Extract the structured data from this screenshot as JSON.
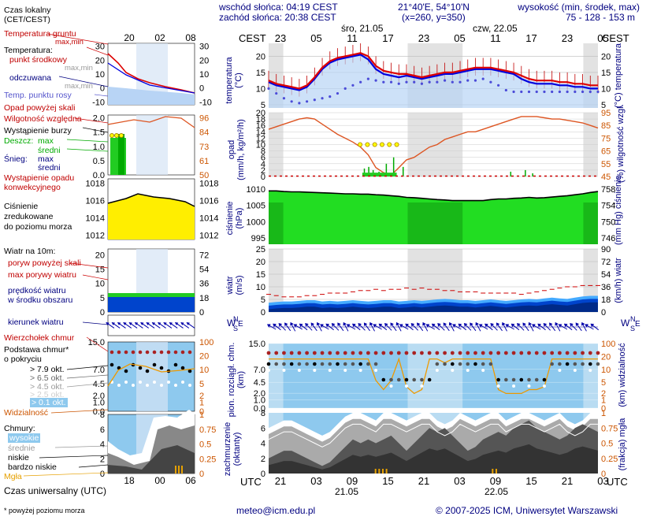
{
  "header": {
    "sunrise": "wschód słońca: 04:19 CEST",
    "sunset": "zachód słońca: 20:38 CEST",
    "coords": "21°40'E, 54°10'N",
    "grid": "(x=260, y=350)",
    "heights_title": "wysokość (min, środek, max)",
    "heights_values": "75 - 128 - 153 m",
    "day1": "śro, 21.05",
    "day2": "czw, 22.05",
    "cest": "CEST",
    "utc": "UTC"
  },
  "legend": {
    "local_time": "Czas lokalny\n(CET/CEST)",
    "ground_temp": "Temperatura gruntu",
    "max_min": "max,min",
    "temperature": "Temperatura:",
    "mid_point": "punkt środkowy",
    "max_min2": "max,min",
    "felt": "odczuwana",
    "max_min3": "max,min",
    "dew_point": "Temp. punktu rosy",
    "precip_above": "Opad powyżej skali",
    "humidity": "Wilgotność względna",
    "storm": "Wystąpienie burzy",
    "rain": "Deszcz:",
    "rain_max": "max",
    "rain_mid": "średni",
    "snow": "Śnieg:",
    "snow_max": "max",
    "snow_mid": "średni",
    "convective": "Wystąpienie opadu\nkonwekcyjnego",
    "pressure": "Ciśnienie\nzredukowane\ndo poziomu morza",
    "wind": "Wiatr na ",
    "wind_height": "10",
    "wind_unit": "m:",
    "gust_above": "poryw powyżej skali",
    "gust_max": "max porywy wiatru",
    "wind_speed": "prędkość wiatru\nw środku obszaru",
    "wind_dir": "kierunek wiatru",
    "cloud_top": "Wierzchołek chmur",
    "cloud_base": "Podstawa chmur*\no pokryciu",
    "okt79": "> 7.9 okt.",
    "okt65": "> 6.5 okt.",
    "okt45": "> 4.5 okt.",
    "okt25": "> 2.5 okt.",
    "okt01": "> 0.1 okt.",
    "visibility": "Widzialność",
    "clouds": "Chmury:",
    "high": "wysokie",
    "middle": "średnie",
    "low": "niskie",
    "very_low": "bardzo niskie",
    "fog": "Mgła",
    "universal_time": "Czas uniwersalny (UTC)",
    "footnote": "* powyżej poziomu morza"
  },
  "axes": {
    "temp_label": "temperatura\n(°C)",
    "temp_unit_right": "(°C)",
    "temp_label_right": "temperatura",
    "precip_label": "opad\n(mm/h, kg/m²/h)",
    "humidity_label": "wilgotność wzgl.",
    "humidity_unit": "(%)",
    "pressure_label": "ciśnienie\n(hPa)",
    "pressure_right": "(mm Hg)",
    "pressure_right2": "ciśnienie",
    "wind_label": "wiatr\n(m/s)",
    "wind_right": "(km/h)",
    "wind_right2": "wiatr",
    "dir_label": "W E S N",
    "cloud_label": "pion. rozciągł. chm.\n(km)",
    "vis_label": "widzialność",
    "vis_unit": "(km)",
    "coverage_label": "zachmurzenie\n(oktanty)",
    "fog_label": "mgła",
    "fog_unit": "(frakcja)"
  },
  "chart_data": [
    {
      "type": "line",
      "name": "temperature",
      "title": "",
      "ylabel": "temperatura (°C)",
      "ylim": [
        4,
        24
      ],
      "ylim_right": [
        4,
        24
      ],
      "x_hours_utc": [
        0,
        3,
        6,
        9,
        12,
        15,
        18,
        21,
        24,
        27,
        30,
        33,
        36,
        39,
        42,
        45
      ],
      "ticks_left": [
        5,
        10,
        15,
        20
      ],
      "mid_temp": [
        12.5,
        11.5,
        11,
        10.5,
        10,
        11,
        13.5,
        16.5,
        18.5,
        19.5,
        20,
        20.5,
        21,
        20,
        17,
        15.5,
        15,
        14.5,
        14.5,
        14,
        13.5,
        14,
        14.5,
        15,
        15,
        15.5,
        16,
        16.5,
        16.5,
        16.5,
        16,
        15.5,
        15,
        14,
        13,
        12.5,
        12.5,
        12.5,
        12,
        12,
        11.5,
        11.5,
        11,
        11
      ],
      "felt_temp": [
        12,
        11,
        10.5,
        10,
        9.5,
        10.5,
        13,
        16,
        18,
        19,
        19.5,
        20,
        20.5,
        19,
        16,
        14.5,
        14,
        13.5,
        14,
        13.5,
        13,
        13.5,
        14,
        14.5,
        14.5,
        15,
        15.5,
        16,
        16,
        16,
        15.5,
        15,
        14.5,
        13,
        12,
        11.5,
        11.5,
        11.5,
        11,
        11,
        10.5,
        10.5,
        10,
        10
      ],
      "dew_point": [
        10,
        8.5,
        7,
        6,
        5.5,
        6,
        6.5,
        7,
        7.5,
        8.5,
        10,
        11,
        12,
        13,
        12.5,
        12,
        12,
        11.5,
        12,
        12,
        11.5,
        12,
        12,
        12.5,
        12,
        12,
        12.5,
        12.5,
        13,
        12,
        11,
        9.5,
        9,
        9,
        9,
        9,
        9,
        9,
        9,
        9,
        9,
        9,
        9,
        9
      ]
    },
    {
      "type": "line",
      "name": "precipitation",
      "ylabel": "opad (mm/h, kg/m²/h)",
      "ylim": [
        0,
        20
      ],
      "ticks_left": [
        0,
        2,
        4,
        6,
        8,
        10,
        12,
        14,
        16,
        18,
        20
      ],
      "ylabel_right": "wilgotność wzgl. (%)",
      "ylim_right": [
        45,
        95
      ],
      "ticks_right": [
        45,
        55,
        65,
        75,
        85,
        95
      ],
      "humidity": [
        82,
        84,
        86,
        88,
        90,
        91,
        90,
        86,
        82,
        78,
        75,
        72,
        68,
        62,
        52,
        48,
        46,
        52,
        58,
        60,
        64,
        68,
        70,
        74,
        76,
        78,
        80,
        80,
        82,
        84,
        86,
        88,
        90,
        92,
        92,
        92,
        91,
        90,
        90,
        89,
        88,
        87,
        85,
        83
      ],
      "storm_hours": [
        12.5,
        13.5,
        14.5,
        15.5,
        16.5,
        17.5
      ]
    },
    {
      "type": "area",
      "name": "pressure",
      "ylabel": "ciśnienie (hPa)",
      "ylim": [
        993,
        1012
      ],
      "ticks_left": [
        995,
        1000,
        1005,
        1010
      ],
      "ylabel_right": "(mm Hg)",
      "ticks_right": [
        746,
        750,
        754,
        758
      ],
      "values": [
        1009.5,
        1009.5,
        1009.3,
        1009.2,
        1009.2,
        1009.1,
        1009,
        1008.9,
        1008.8,
        1008.7,
        1008.6,
        1008.6,
        1008.5,
        1008.5,
        1008.3,
        1008.2,
        1008,
        1007.8,
        1007.5,
        1007.4,
        1007.2,
        1007,
        1006.8,
        1006.7,
        1006.5,
        1006.5,
        1006.5,
        1006.5,
        1006.5,
        1006.8,
        1007,
        1007,
        1007.2,
        1007.3,
        1007.5,
        1007.3,
        1007.4,
        1007.6,
        1007.8,
        1008,
        1008.3,
        1008.6,
        1009,
        1009.3
      ]
    },
    {
      "type": "area",
      "name": "wind",
      "ylabel": "wiatr (m/s)",
      "ylim": [
        0,
        25
      ],
      "ticks_left": [
        0,
        5,
        10,
        15,
        20,
        25
      ],
      "ylabel_right": "(km/h)",
      "ticks_right": [
        0,
        18,
        36,
        54,
        72,
        90
      ],
      "speed": [
        2.5,
        2.8,
        3,
        3,
        3.2,
        3.5,
        3.5,
        3,
        3.2,
        3,
        3.2,
        3.5,
        3.2,
        3,
        3.2,
        3.5,
        3.5,
        3,
        3.2,
        3.5,
        3.2,
        3.5,
        3.8,
        4,
        3.8,
        3.5,
        3.5,
        3.2,
        3.5,
        3.8,
        3.5,
        3.2,
        3.5,
        3.8,
        4,
        3.8,
        4.2,
        4.5,
        4.2,
        4,
        4.5,
        5,
        5.2,
        5.2
      ],
      "gusts": [
        7,
        6.5,
        6,
        6,
        6,
        6.5,
        6.5,
        7,
        7.5,
        7.5,
        7.5,
        8,
        8.5,
        8.5,
        9,
        8.5,
        9,
        9,
        9.5,
        9,
        9.5,
        9,
        9,
        8.5,
        8.5,
        8,
        8,
        8,
        7.5,
        7.5,
        7.5,
        7.5,
        7.5,
        7,
        7.5,
        8,
        8.5,
        9,
        9.5,
        10,
        10,
        10.5,
        10.5,
        10.5
      ]
    },
    {
      "type": "scatter",
      "name": "cloud-base",
      "ylabel": "pion. rozciągł. chm. (km)",
      "ylim": [
        0,
        15
      ],
      "ticks_left": [
        0.0,
        1.0,
        2.0,
        4.5,
        7.0,
        15.0
      ],
      "ylabel_right": "widzialność (km)",
      "ticks_right": [
        0,
        1,
        2,
        5,
        10,
        20,
        100
      ],
      "cloud_top": 11.5,
      "visibility": [
        40,
        40,
        40,
        40,
        40,
        40,
        40,
        40,
        40,
        40,
        40,
        40,
        40,
        40,
        8,
        4,
        8,
        40,
        5,
        3,
        4,
        40,
        40,
        30,
        40,
        40,
        40,
        40,
        40,
        40,
        4,
        3,
        3,
        3,
        4,
        4,
        5,
        40,
        40,
        40,
        40,
        40,
        40,
        40
      ]
    },
    {
      "type": "area",
      "name": "cloud-cover",
      "ylabel": "zachmurzenie (oktanty)",
      "ylim": [
        0,
        8
      ],
      "ticks_left": [
        0,
        2,
        4,
        6,
        8
      ],
      "ylabel_right": "mgła (frakcja)",
      "ylim_right": [
        0,
        1
      ],
      "ticks_right": [
        0,
        0.25,
        0.5,
        0.75,
        1
      ],
      "low": [
        2,
        2.5,
        3,
        3,
        2.5,
        2,
        1.5,
        1,
        1.5,
        2.5,
        3.5,
        4.5,
        4,
        4.5,
        4,
        4.5,
        5,
        4,
        3,
        4,
        5,
        6,
        5.5,
        6,
        5,
        4,
        3,
        3.5,
        4.5,
        5,
        5.5,
        5,
        6,
        6.5,
        7,
        6,
        5.5,
        5,
        4.5,
        5,
        6,
        6.5,
        6,
        5.5
      ],
      "high": [
        6,
        6.5,
        7,
        7,
        6.5,
        6,
        5.5,
        5,
        5.5,
        6.5,
        7.5,
        8,
        8,
        7.5,
        7,
        8,
        8,
        7.5,
        7,
        7.5,
        8,
        8,
        7,
        6.5,
        7,
        8,
        7.5,
        7,
        7.5,
        8,
        8,
        7,
        7.5,
        8,
        8,
        7.5,
        7,
        7.5,
        8,
        7,
        6.5,
        7,
        8,
        8
      ]
    }
  ],
  "left_charts": {
    "time_labels_local": [
      "20",
      "02",
      "08"
    ],
    "time_labels_utc": [
      "18",
      "00",
      "06"
    ],
    "temp_ticks": [
      -10,
      0,
      10,
      20,
      30
    ],
    "precip_ticks_left": [
      0,
      0.5,
      1.0,
      1.5,
      2.0
    ],
    "precip_ticks_right": [
      50,
      61,
      73,
      84,
      96
    ],
    "pressure_ticks": [
      1012,
      1014,
      1016,
      1018
    ],
    "wind_ticks_left": [
      0,
      5,
      10,
      15,
      20
    ],
    "wind_ticks_right": [
      0,
      18,
      36,
      54,
      72
    ],
    "cloud_ticks_left": [
      0.0,
      1.0,
      2.0,
      4.5,
      7.0,
      15.0
    ],
    "cloud_ticks_right": [
      0,
      1,
      2,
      5,
      10,
      20,
      100
    ],
    "cover_ticks_left": [
      0,
      2,
      4,
      6,
      8
    ],
    "cover_ticks_right": [
      0,
      0.25,
      0.5,
      0.75,
      1
    ]
  },
  "time_axis": {
    "cest_labels": [
      "23",
      "05",
      "11",
      "17",
      "23",
      "05",
      "11",
      "17",
      "23",
      "05"
    ],
    "utc_labels": [
      "21",
      "03",
      "09",
      "15",
      "21",
      "03",
      "09",
      "15",
      "21",
      "03"
    ],
    "utc_dates": [
      "21.05",
      "22.05"
    ]
  },
  "footer": {
    "email": "meteo@icm.edu.pl",
    "copyright": "© 2007-2025 ICM, Uniwersytet Warszawski"
  },
  "colors": {
    "blue_axis": "#0000aa",
    "red": "#d00000",
    "orange": "#cc5500",
    "sky": "#8ec9ee",
    "grass": "#22cc22"
  }
}
